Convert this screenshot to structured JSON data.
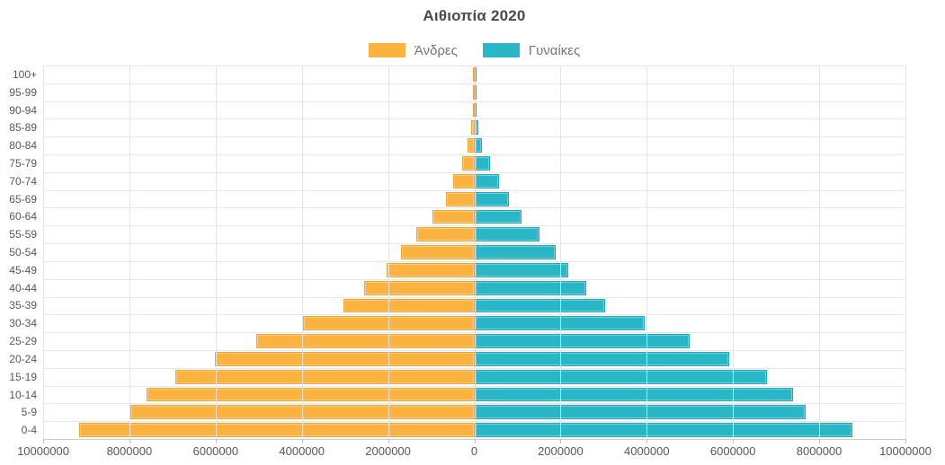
{
  "title": "Αιθιοπία 2020",
  "legend": {
    "men": "Άνδρες",
    "women": "Γυναίκες"
  },
  "colors": {
    "men": "#FBB23F",
    "men_border": "#F2A52C",
    "women": "#29B7C7",
    "women_border": "#1EA8B8",
    "grid": "#E4E4E4",
    "axis_line": "#C9C9C9",
    "axis_text": "#575757",
    "title_text": "#4A4A4A",
    "legend_text": "#757575"
  },
  "chart_data": {
    "type": "bar",
    "subtype": "population_pyramid",
    "orientation": "horizontal",
    "title": "Αιθιοπία 2020",
    "categories_order": "top_to_bottom",
    "categories": [
      "100+",
      "95-99",
      "90-94",
      "85-89",
      "80-84",
      "75-79",
      "70-74",
      "65-69",
      "60-64",
      "55-59",
      "50-54",
      "45-49",
      "40-44",
      "35-39",
      "30-34",
      "25-29",
      "20-24",
      "15-19",
      "10-14",
      "5-9",
      "0-4"
    ],
    "series": [
      {
        "name": "Άνδρες",
        "side": "left",
        "color": "#FBB23F",
        "values": [
          10000,
          15000,
          15000,
          70000,
          150000,
          280000,
          490000,
          660000,
          970000,
          1340000,
          1690000,
          2040000,
          2550000,
          3030000,
          3980000,
          5050000,
          6020000,
          6930000,
          7600000,
          7980000,
          9160000
        ]
      },
      {
        "name": "Γυναίκες",
        "side": "right",
        "color": "#29B7C7",
        "values": [
          5000,
          10000,
          30000,
          90000,
          180000,
          370000,
          580000,
          795000,
          1100000,
          1520000,
          1890000,
          2170000,
          2590000,
          3040000,
          3960000,
          4990000,
          5920000,
          6780000,
          7390000,
          7680000,
          8760000
        ]
      }
    ],
    "x_axis": {
      "max_each_side": 10000000,
      "tick_interval": 2000000,
      "tick_labels": [
        "10000000",
        "8000000",
        "6000000",
        "4000000",
        "2000000",
        "0",
        "2000000",
        "4000000",
        "6000000",
        "8000000",
        "10000000"
      ]
    },
    "grid": true,
    "legend_position": "top"
  }
}
